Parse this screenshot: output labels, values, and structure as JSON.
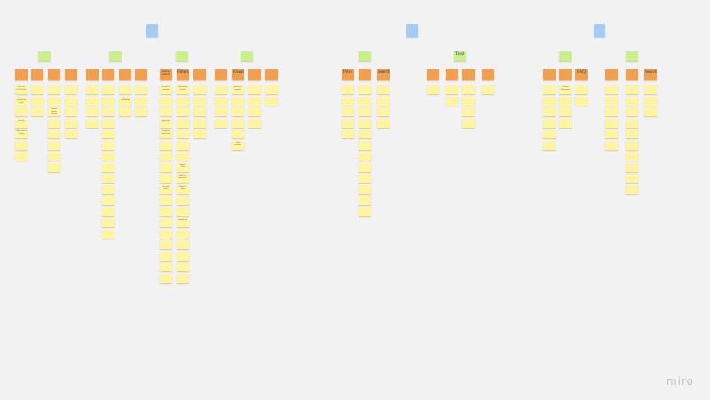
{
  "board": {
    "colors": {
      "root": "#a6ccf5",
      "category": "#c9f08a",
      "subcategory": "#f3a04e",
      "item": "#fff5a0",
      "background": "#f2f2f2"
    },
    "clusters": [
      {
        "root": "",
        "groups": [
          {
            "label": "",
            "headers": [
              {
                "label": "",
                "items": [
                  {
                    "text": "Look at a Hotel Page"
                  },
                  {
                    "text": "Review reviews for hotel"
                  },
                  {
                    "text": ""
                  },
                  {
                    "text": "Sort by lowest price"
                  },
                  {
                    "text": "Filter places to stay"
                  },
                  {
                    "text": ""
                  },
                  {
                    "text": ""
                  }
                ]
              },
              {
                "label": "",
                "items": [
                  {
                    "text": ""
                  },
                  {
                    "text": ""
                  },
                  {
                    "text": ""
                  }
                ]
              },
              {
                "label": "",
                "items": [
                  {
                    "text": ""
                  },
                  {
                    "text": ""
                  },
                  {
                    "text": "Read review ratings"
                  },
                  {
                    "text": ""
                  },
                  {
                    "text": ""
                  },
                  {
                    "text": ""
                  },
                  {
                    "text": ""
                  },
                  {
                    "text": ""
                  }
                ]
              },
              {
                "label": "",
                "items": [
                  {
                    "text": ""
                  },
                  {
                    "text": ""
                  },
                  {
                    "text": ""
                  },
                  {
                    "text": ""
                  },
                  {
                    "text": ""
                  }
                ]
              }
            ]
          },
          {
            "label": "",
            "headers": [
              {
                "label": "",
                "items": [
                  {
                    "text": ""
                  },
                  {
                    "text": ""
                  },
                  {
                    "text": ""
                  },
                  {
                    "text": ""
                  }
                ]
              },
              {
                "label": "",
                "items": [
                  {
                    "text": ""
                  },
                  {
                    "text": ""
                  },
                  {
                    "text": ""
                  },
                  {
                    "text": ""
                  },
                  {
                    "text": ""
                  },
                  {
                    "text": ""
                  },
                  {
                    "text": ""
                  },
                  {
                    "text": ""
                  },
                  {
                    "text": ""
                  },
                  {
                    "text": ""
                  },
                  {
                    "text": ""
                  },
                  {
                    "text": ""
                  },
                  {
                    "text": ""
                  },
                  {
                    "text": ""
                  }
                ]
              },
              {
                "label": "",
                "items": [
                  {
                    "text": ""
                  },
                  {
                    "text": "Check availability"
                  },
                  {
                    "text": ""
                  }
                ]
              },
              {
                "label": "",
                "items": [
                  {
                    "text": ""
                  },
                  {
                    "text": ""
                  },
                  {
                    "text": ""
                  }
                ]
              }
            ]
          },
          {
            "label": "",
            "headers": [
              {
                "label": "Refine search",
                "items": [
                  {
                    "text": "Search by amenity"
                  },
                  {
                    "text": ""
                  },
                  {
                    "text": ""
                  },
                  {
                    "text": "Search by Rating"
                  },
                  {
                    "text": "Search by Room Size"
                  },
                  {
                    "text": ""
                  },
                  {
                    "text": ""
                  },
                  {
                    "text": ""
                  },
                  {
                    "text": ""
                  },
                  {
                    "text": "Sort by price"
                  },
                  {
                    "text": ""
                  },
                  {
                    "text": ""
                  },
                  {
                    "text": ""
                  },
                  {
                    "text": ""
                  },
                  {
                    "text": ""
                  },
                  {
                    "text": ""
                  },
                  {
                    "text": ""
                  },
                  {
                    "text": ""
                  }
                ]
              },
              {
                "label": "Filters",
                "items": [
                  {
                    "text": "Search by location"
                  },
                  {
                    "text": ""
                  },
                  {
                    "text": ""
                  },
                  {
                    "text": ""
                  },
                  {
                    "text": ""
                  },
                  {
                    "text": ""
                  },
                  {
                    "text": ""
                  },
                  {
                    "text": "Search Filter"
                  },
                  {
                    "text": "Filter by amenities"
                  },
                  {
                    "text": "Filter by age"
                  },
                  {
                    "text": ""
                  },
                  {
                    "text": ""
                  },
                  {
                    "text": "Quality bar"
                  },
                  {
                    "text": ""
                  },
                  {
                    "text": ""
                  },
                  {
                    "text": ""
                  },
                  {
                    "text": ""
                  },
                  {
                    "text": ""
                  }
                ]
              },
              {
                "label": "",
                "items": [
                  {
                    "text": ""
                  },
                  {
                    "text": ""
                  },
                  {
                    "text": ""
                  },
                  {
                    "text": ""
                  },
                  {
                    "text": ""
                  }
                ]
              }
            ]
          },
          {
            "label": "",
            "headers": [
              {
                "label": "",
                "items": [
                  {
                    "text": ""
                  },
                  {
                    "text": ""
                  },
                  {
                    "text": ""
                  },
                  {
                    "text": ""
                  }
                ]
              },
              {
                "label": "Visuals",
                "items": [
                  {
                    "text": "Look over images"
                  },
                  {
                    "text": ""
                  },
                  {
                    "text": ""
                  },
                  {
                    "text": ""
                  },
                  {
                    "text": ""
                  },
                  {
                    "text": "Click images"
                  }
                ]
              },
              {
                "label": "",
                "items": [
                  {
                    "text": ""
                  },
                  {
                    "text": ""
                  },
                  {
                    "text": ""
                  },
                  {
                    "text": ""
                  }
                ]
              },
              {
                "label": "",
                "items": [
                  {
                    "text": ""
                  },
                  {
                    "text": ""
                  }
                ]
              }
            ]
          }
        ]
      },
      {
        "root": "",
        "groups": [
          {
            "label": "",
            "headers": [
              {
                "label": "Price",
                "items": [
                  {
                    "text": ""
                  },
                  {
                    "text": ""
                  },
                  {
                    "text": ""
                  },
                  {
                    "text": ""
                  },
                  {
                    "text": ""
                  }
                ]
              },
              {
                "label": "",
                "items": [
                  {
                    "text": ""
                  },
                  {
                    "text": ""
                  },
                  {
                    "text": ""
                  },
                  {
                    "text": ""
                  },
                  {
                    "text": ""
                  },
                  {
                    "text": ""
                  },
                  {
                    "text": ""
                  },
                  {
                    "text": ""
                  },
                  {
                    "text": ""
                  },
                  {
                    "text": ""
                  },
                  {
                    "text": ""
                  },
                  {
                    "text": ""
                  }
                ]
              },
              {
                "label": "Search",
                "items": [
                  {
                    "text": ""
                  },
                  {
                    "text": ""
                  },
                  {
                    "text": ""
                  },
                  {
                    "text": ""
                  }
                ]
              }
            ]
          },
          {
            "label": "Trust",
            "headers": [
              {
                "label": "",
                "items": [
                  {
                    "text": ""
                  }
                ]
              },
              {
                "label": "",
                "items": [
                  {
                    "text": ""
                  },
                  {
                    "text": ""
                  }
                ]
              },
              {
                "label": "",
                "items": [
                  {
                    "text": ""
                  },
                  {
                    "text": ""
                  },
                  {
                    "text": ""
                  },
                  {
                    "text": ""
                  }
                ]
              },
              {
                "label": "",
                "items": [
                  {
                    "text": ""
                  }
                ]
              }
            ]
          }
        ]
      },
      {
        "root": "",
        "groups": [
          {
            "label": "",
            "headers": [
              {
                "label": "",
                "items": [
                  {
                    "text": ""
                  },
                  {
                    "text": ""
                  },
                  {
                    "text": ""
                  },
                  {
                    "text": ""
                  },
                  {
                    "text": ""
                  },
                  {
                    "text": ""
                  }
                ]
              },
              {
                "label": "",
                "items": [
                  {
                    "text": "Privacy Statements"
                  },
                  {
                    "text": ""
                  },
                  {
                    "text": ""
                  },
                  {
                    "text": ""
                  }
                ]
              },
              {
                "label": "FAQ",
                "items": [
                  {
                    "text": ""
                  },
                  {
                    "text": ""
                  }
                ]
              }
            ]
          },
          {
            "label": "",
            "headers": [
              {
                "label": "",
                "items": [
                  {
                    "text": ""
                  },
                  {
                    "text": ""
                  },
                  {
                    "text": ""
                  },
                  {
                    "text": ""
                  },
                  {
                    "text": ""
                  },
                  {
                    "text": ""
                  }
                ]
              },
              {
                "label": "",
                "items": [
                  {
                    "text": ""
                  },
                  {
                    "text": ""
                  },
                  {
                    "text": ""
                  },
                  {
                    "text": ""
                  },
                  {
                    "text": ""
                  },
                  {
                    "text": ""
                  },
                  {
                    "text": ""
                  },
                  {
                    "text": ""
                  },
                  {
                    "text": ""
                  },
                  {
                    "text": ""
                  }
                ]
              },
              {
                "label": "Search",
                "items": [
                  {
                    "text": ""
                  },
                  {
                    "text": ""
                  },
                  {
                    "text": ""
                  }
                ]
              }
            ]
          }
        ]
      }
    ]
  },
  "watermark": {
    "text": "miro"
  }
}
